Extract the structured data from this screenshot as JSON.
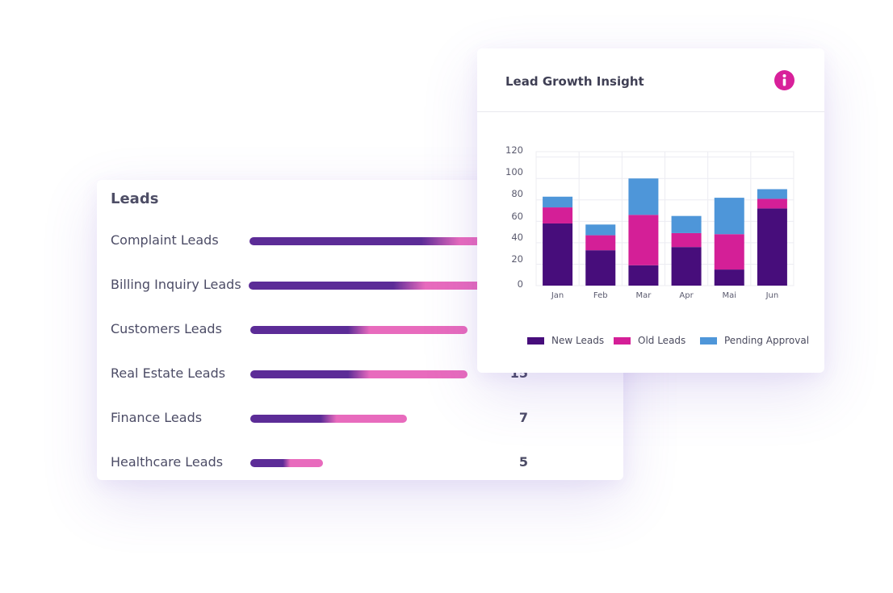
{
  "leads": {
    "title": "Leads",
    "items": [
      {
        "label": "Complaint Leads",
        "count": "",
        "level": 0.95
      },
      {
        "label": "Billing Inquiry Leads",
        "count": "",
        "level": 0.8
      },
      {
        "label": "Customers Leads",
        "count": "",
        "level": 0.54
      },
      {
        "label": "Real Estate Leads",
        "count": "15",
        "level": 0.54
      },
      {
        "label": "Finance Leads",
        "count": "7",
        "level": 0.39
      },
      {
        "label": "Healthcare Leads",
        "count": "5",
        "level": 0.18
      }
    ]
  },
  "insight": {
    "title": "Lead Growth Insight",
    "info_icon": "info-icon"
  },
  "colors": {
    "new": "#470d7b",
    "old": "#d41f97",
    "pending": "#4e96d9",
    "bar_start": "#5c2c97",
    "bar_end": "#e86bbd"
  },
  "chart_data": {
    "type": "bar",
    "stacked": true,
    "categories": [
      "Jan",
      "Feb",
      "Mar",
      "Apr",
      "Mai",
      "Jun"
    ],
    "series": [
      {
        "name": "New Leads",
        "values": [
          58,
          33,
          19,
          36,
          15,
          72
        ]
      },
      {
        "name": "Old Leads",
        "values": [
          15,
          14,
          47,
          13,
          33,
          9
        ]
      },
      {
        "name": "Pending Approval",
        "values": [
          10,
          10,
          34,
          16,
          34,
          9
        ]
      }
    ],
    "yticks": [
      "120",
      "100",
      "80",
      "60",
      "40",
      "20",
      "0"
    ],
    "ylim": [
      0,
      125
    ],
    "grid": true,
    "legend": "bottom"
  }
}
